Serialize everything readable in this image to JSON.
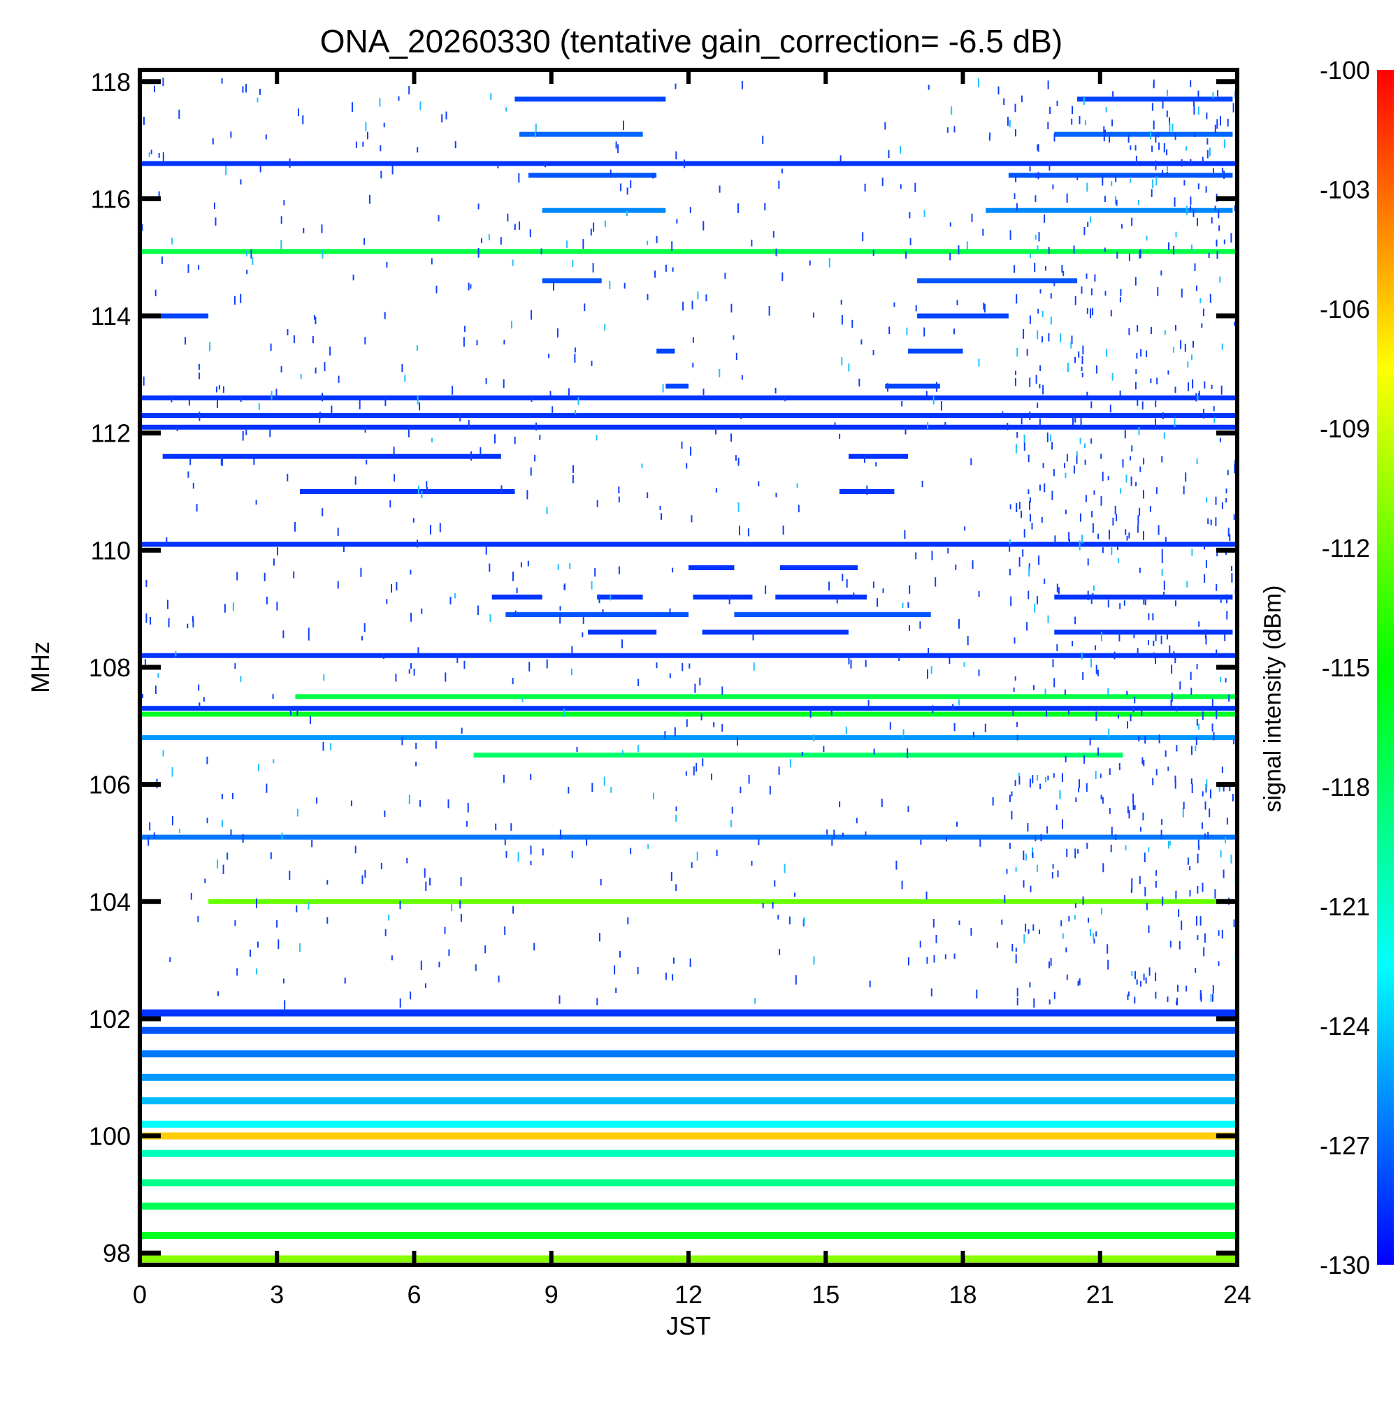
{
  "chart_data": {
    "type": "heatmap",
    "title": "ONA_20260330 (tentative gain_correction= -6.5 dB)",
    "xlabel": "JST",
    "ylabel": "MHz",
    "xlim": [
      0,
      24
    ],
    "ylim": [
      97.8,
      118.2
    ],
    "x_ticks": [
      "0",
      "3",
      "6",
      "9",
      "12",
      "15",
      "18",
      "21",
      "24"
    ],
    "y_ticks": [
      "98",
      "100",
      "102",
      "104",
      "106",
      "108",
      "110",
      "112",
      "114",
      "116",
      "118"
    ],
    "colorbar": {
      "label": "signal intensity (dBm)",
      "range": [
        -130,
        -100
      ],
      "ticks": [
        "-100",
        "-103",
        "-106",
        "-109",
        "-112",
        "-115",
        "-118",
        "-121",
        "-124",
        "-127",
        "-130"
      ],
      "colormap": [
        "#0000ff",
        "#0080ff",
        "#00ffff",
        "#00ff80",
        "#00ff00",
        "#80ff00",
        "#ffff00",
        "#ff8000",
        "#ff0000"
      ]
    },
    "bands": [
      {
        "freq": 117.7,
        "level": -128,
        "segments": [
          [
            8.2,
            11.5
          ],
          [
            20.5,
            23.9
          ]
        ]
      },
      {
        "freq": 117.1,
        "level": -127,
        "segments": [
          [
            8.3,
            11.0
          ],
          [
            20.0,
            23.9
          ]
        ]
      },
      {
        "freq": 116.6,
        "level": -128.5,
        "segments": [
          [
            0,
            24
          ]
        ]
      },
      {
        "freq": 116.4,
        "level": -127.5,
        "segments": [
          [
            8.5,
            11.3
          ],
          [
            19.0,
            23.9
          ]
        ]
      },
      {
        "freq": 115.8,
        "level": -126,
        "segments": [
          [
            8.8,
            11.5
          ],
          [
            18.5,
            23.9
          ]
        ]
      },
      {
        "freq": 115.1,
        "level": -117,
        "segments": [
          [
            0,
            24
          ]
        ]
      },
      {
        "freq": 114.6,
        "level": -127.5,
        "segments": [
          [
            8.8,
            10.1
          ],
          [
            17.0,
            20.5
          ]
        ]
      },
      {
        "freq": 114.0,
        "level": -128,
        "segments": [
          [
            0,
            1.5
          ],
          [
            17.0,
            19.0
          ]
        ]
      },
      {
        "freq": 113.4,
        "level": -128,
        "segments": [
          [
            11.3,
            11.7
          ],
          [
            16.8,
            18.0
          ]
        ]
      },
      {
        "freq": 112.8,
        "level": -128,
        "segments": [
          [
            11.5,
            12.0
          ],
          [
            16.3,
            17.5
          ]
        ]
      },
      {
        "freq": 112.6,
        "level": -128.5,
        "segments": [
          [
            0,
            24
          ]
        ]
      },
      {
        "freq": 112.3,
        "level": -128.5,
        "segments": [
          [
            0,
            24
          ]
        ]
      },
      {
        "freq": 112.1,
        "level": -128.5,
        "segments": [
          [
            0,
            24
          ]
        ]
      },
      {
        "freq": 111.6,
        "level": -128.5,
        "segments": [
          [
            0.5,
            7.9
          ],
          [
            15.5,
            16.8
          ]
        ]
      },
      {
        "freq": 111.0,
        "level": -128.5,
        "segments": [
          [
            3.5,
            8.2
          ],
          [
            15.3,
            16.5
          ]
        ]
      },
      {
        "freq": 110.1,
        "level": -128.5,
        "segments": [
          [
            0,
            24
          ]
        ]
      },
      {
        "freq": 109.7,
        "level": -128.5,
        "segments": [
          [
            12.0,
            13.0
          ],
          [
            14.0,
            15.7
          ]
        ]
      },
      {
        "freq": 109.2,
        "level": -128.5,
        "segments": [
          [
            7.7,
            8.8
          ],
          [
            10.0,
            11.0
          ],
          [
            12.1,
            13.4
          ],
          [
            13.9,
            15.9
          ],
          [
            20.0,
            23.9
          ]
        ]
      },
      {
        "freq": 108.9,
        "level": -127.5,
        "segments": [
          [
            8.0,
            12.0
          ],
          [
            13.0,
            17.3
          ]
        ]
      },
      {
        "freq": 108.6,
        "level": -128.5,
        "segments": [
          [
            9.8,
            11.3
          ],
          [
            12.3,
            15.5
          ],
          [
            20.0,
            23.9
          ]
        ]
      },
      {
        "freq": 108.2,
        "level": -128.5,
        "segments": [
          [
            0,
            24
          ]
        ]
      },
      {
        "freq": 107.5,
        "level": -117,
        "segments": [
          [
            3.4,
            24
          ]
        ]
      },
      {
        "freq": 107.3,
        "level": -128.5,
        "segments": [
          [
            0,
            24
          ]
        ]
      },
      {
        "freq": 107.2,
        "level": -116,
        "segments": [
          [
            0,
            24
          ]
        ]
      },
      {
        "freq": 106.8,
        "level": -125.5,
        "segments": [
          [
            0,
            24
          ]
        ]
      },
      {
        "freq": 106.5,
        "level": -118,
        "segments": [
          [
            7.3,
            21.5
          ]
        ]
      },
      {
        "freq": 105.1,
        "level": -126.5,
        "segments": [
          [
            0,
            24
          ]
        ]
      },
      {
        "freq": 104.0,
        "level": -112,
        "segments": [
          [
            1.5,
            23.9
          ]
        ]
      },
      {
        "freq": 102.1,
        "level": -128.5,
        "segments": [
          [
            0,
            24
          ]
        ]
      },
      {
        "freq": 101.8,
        "level": -127.5,
        "segments": [
          [
            0,
            24
          ]
        ]
      },
      {
        "freq": 101.4,
        "level": -126.5,
        "segments": [
          [
            0,
            24
          ]
        ]
      },
      {
        "freq": 101.0,
        "level": -125.5,
        "segments": [
          [
            0,
            24
          ]
        ]
      },
      {
        "freq": 100.6,
        "level": -124.5,
        "segments": [
          [
            0,
            24
          ]
        ]
      },
      {
        "freq": 100.2,
        "level": -122.5,
        "segments": [
          [
            0,
            24
          ]
        ]
      },
      {
        "freq": 100.0,
        "level": -106,
        "segments": [
          [
            0,
            24
          ]
        ]
      },
      {
        "freq": 99.7,
        "level": -120.5,
        "segments": [
          [
            0,
            24
          ]
        ]
      },
      {
        "freq": 99.2,
        "level": -119,
        "segments": [
          [
            0,
            24
          ]
        ]
      },
      {
        "freq": 98.8,
        "level": -117.5,
        "segments": [
          [
            0,
            24
          ]
        ]
      },
      {
        "freq": 98.3,
        "level": -116,
        "segments": [
          [
            0,
            24
          ]
        ]
      },
      {
        "freq": 97.9,
        "level": -111,
        "segments": [
          [
            0,
            24
          ]
        ]
      }
    ]
  }
}
